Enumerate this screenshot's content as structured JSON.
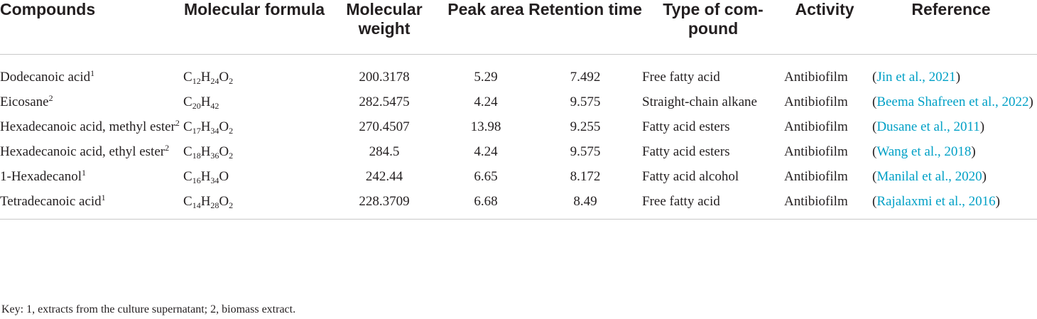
{
  "headers": [
    "Compounds",
    "Molecular formula",
    "Molecular weight",
    "Peak area",
    "Retention time",
    "Type of com- pound",
    "Activity",
    "Reference"
  ],
  "rows": [
    {
      "compound": "Dodecanoic acid",
      "note": "1",
      "formula": [
        [
          "C",
          "12"
        ],
        [
          "H",
          "24"
        ],
        [
          "O",
          "2"
        ]
      ],
      "weight": "200.3178",
      "peak_area": "5.29",
      "retention_time": "7.492",
      "type": "Free fatty acid",
      "activity": "Antibiofilm",
      "reference": "Jin et al., 2021"
    },
    {
      "compound": "Eicosane",
      "note": "2",
      "formula": [
        [
          "C",
          "20"
        ],
        [
          "H",
          "42"
        ]
      ],
      "weight": "282.5475",
      "peak_area": "4.24",
      "retention_time": "9.575",
      "type": "Straight-chain alkane",
      "activity": "Antibiofilm",
      "reference": "Beema Shafreen et al., 2022"
    },
    {
      "compound": "Hexadecanoic acid, methyl ester",
      "note": "2",
      "formula": [
        [
          "C",
          "17"
        ],
        [
          "H",
          "34"
        ],
        [
          "O",
          "2"
        ]
      ],
      "weight": "270.4507",
      "peak_area": "13.98",
      "retention_time": "9.255",
      "type": "Fatty acid esters",
      "activity": "Antibiofilm",
      "reference": "Dusane et al., 2011"
    },
    {
      "compound": "Hexadecanoic acid, ethyl ester",
      "note": "2",
      "formula": [
        [
          "C",
          "18"
        ],
        [
          "H",
          "36"
        ],
        [
          "O",
          "2"
        ]
      ],
      "weight": "284.5",
      "peak_area": "4.24",
      "retention_time": "9.575",
      "type": "Fatty acid esters",
      "activity": "Antibiofilm",
      "reference": "Wang et al., 2018"
    },
    {
      "compound": "1-Hexadecanol",
      "note": "1",
      "formula": [
        [
          "C",
          "16"
        ],
        [
          "H",
          "34"
        ],
        [
          "O",
          ""
        ]
      ],
      "weight": "242.44",
      "peak_area": "6.65",
      "retention_time": "8.172",
      "type": "Fatty acid alcohol",
      "activity": "Antibiofilm",
      "reference": "Manilal et al., 2020"
    },
    {
      "compound": "Tetradecanoic acid",
      "note": "1",
      "formula": [
        [
          "C",
          "14"
        ],
        [
          "H",
          "28"
        ],
        [
          "O",
          "2"
        ]
      ],
      "weight": "228.3709",
      "peak_area": "6.68",
      "retention_time": "8.49",
      "type": "Free fatty acid",
      "activity": "Antibiofilm",
      "reference": "Rajalaxmi et al., 2016"
    }
  ],
  "key": "Key: 1, extracts from the culture supernatant; 2, biomass extract.",
  "colors": {
    "text": "#231f20",
    "reference_link": "#00a0c6",
    "rule": "#c9c9c9"
  }
}
